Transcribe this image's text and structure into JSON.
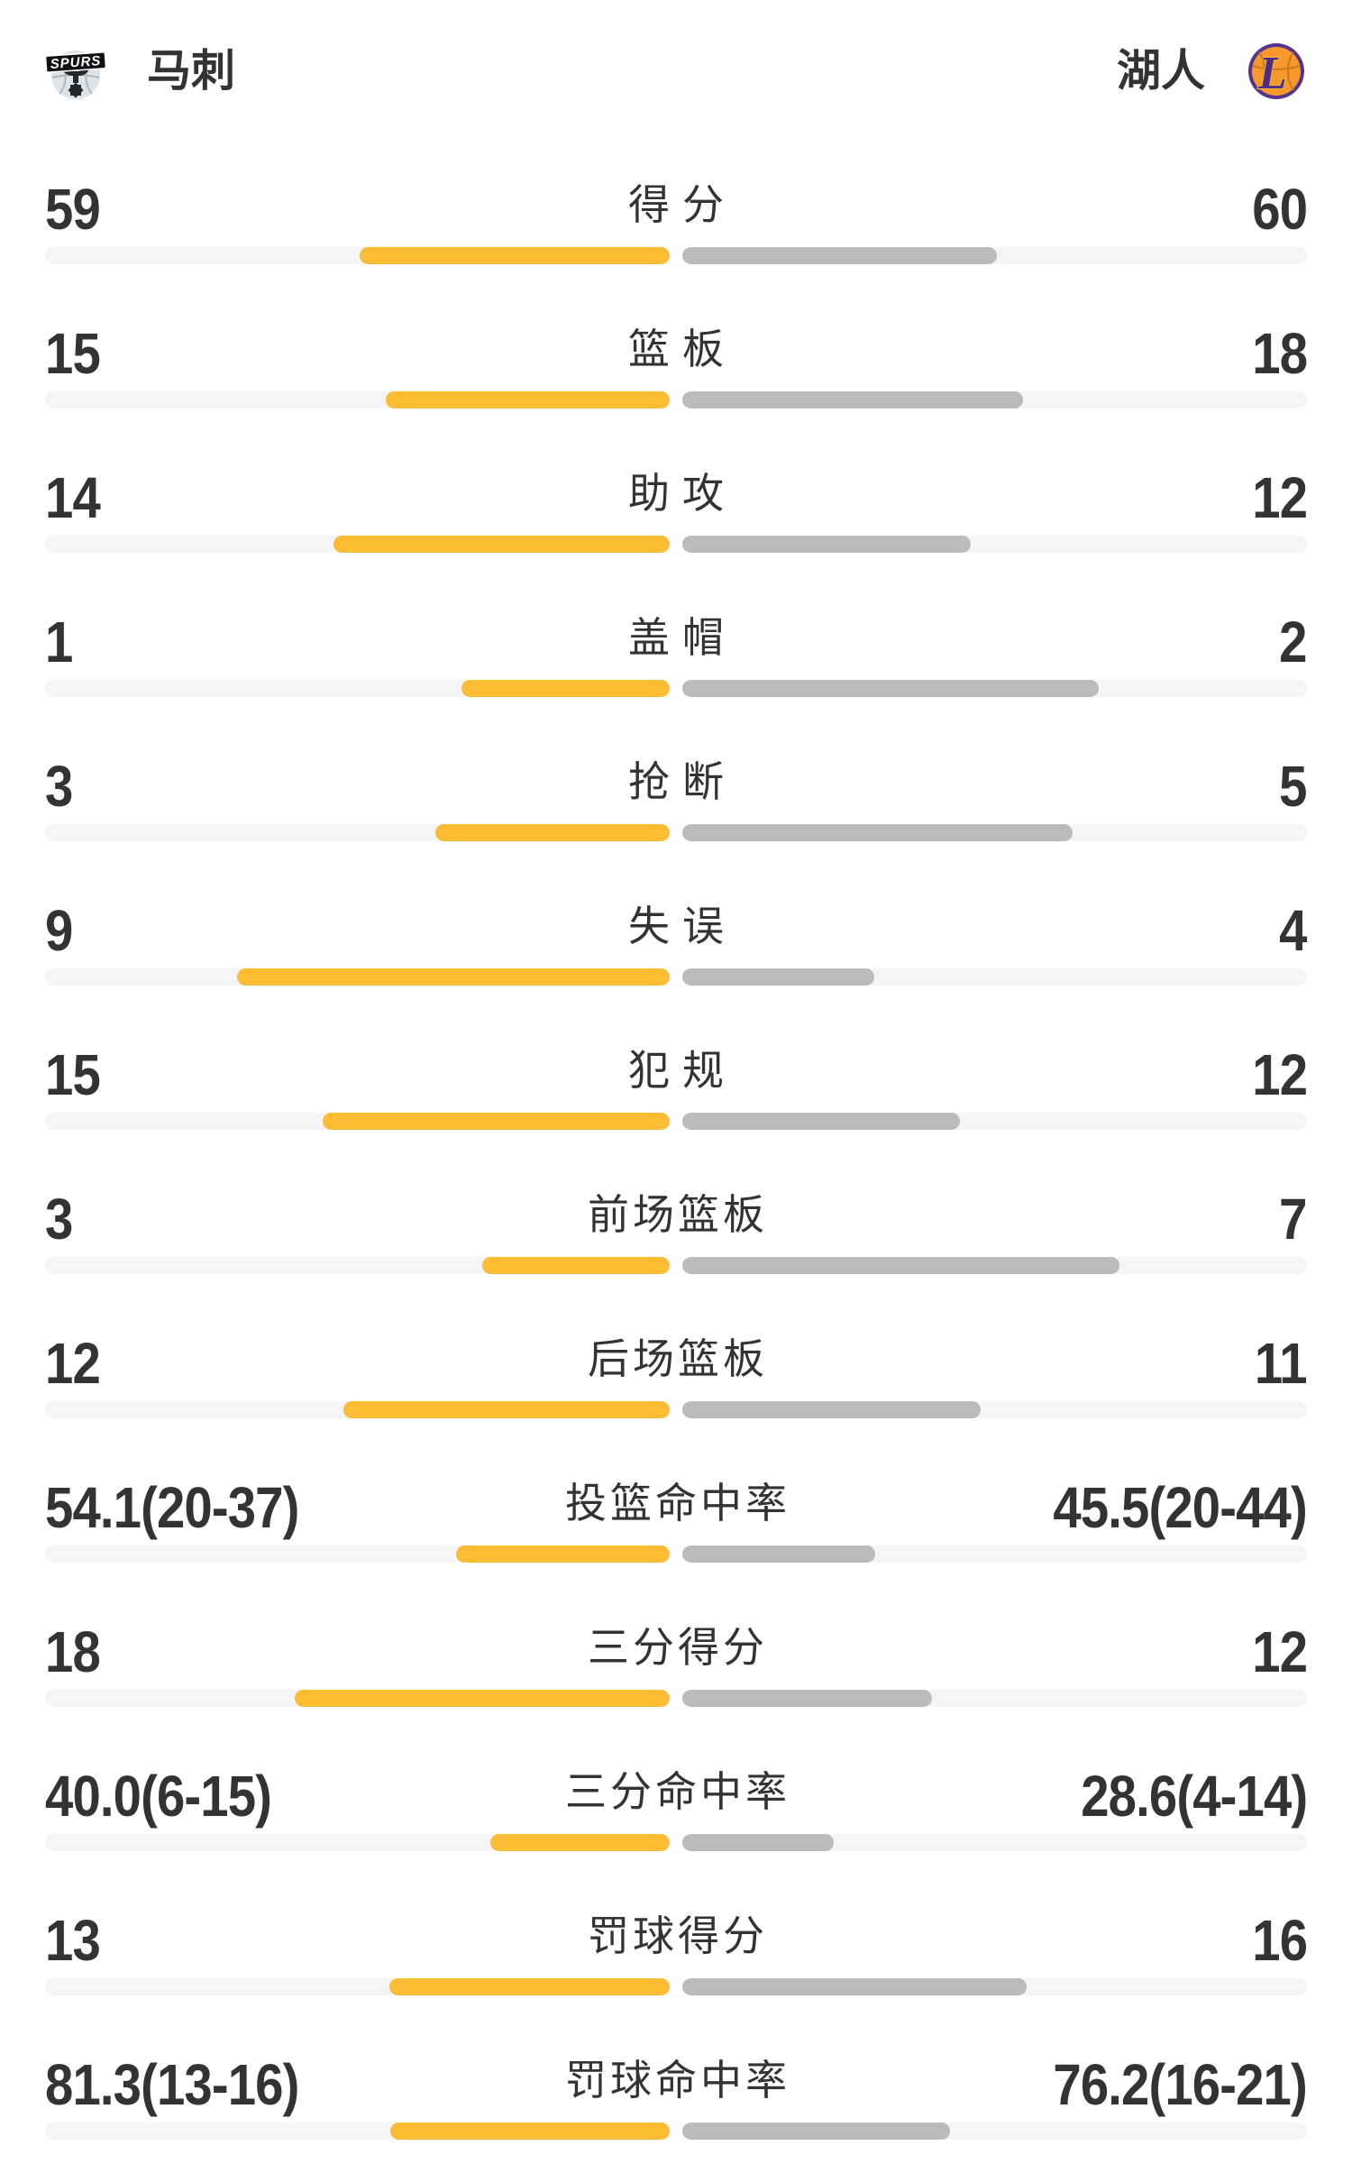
{
  "header": {
    "home": {
      "name": "马刺",
      "logo": "spurs-logo",
      "logo_text": "SPURS"
    },
    "away": {
      "name": "湖人",
      "logo": "lakers-logo",
      "logo_letter": "L"
    }
  },
  "colors": {
    "home_bar": "#FBBC34",
    "away_bar": "#BBBBBB",
    "track": "#F5F5F7",
    "text": "#333333",
    "background": "#FFFFFF",
    "spurs_silver": "#DCE3E9",
    "spurs_dark": "#25282B",
    "lakers_purple": "#563390",
    "lakers_orange": "#F6982C",
    "lakers_gold": "#F2B63B"
  },
  "chart_data": {
    "type": "bar",
    "subtype": "paired-horizontal-comparison",
    "title": "",
    "teams": [
      "马刺",
      "湖人"
    ],
    "legend_position": "header",
    "grid": false,
    "rows": [
      {
        "label": "得分",
        "kind": "count",
        "home": 59,
        "away": 60,
        "home_display": "59",
        "away_display": "60"
      },
      {
        "label": "篮板",
        "kind": "count",
        "home": 15,
        "away": 18,
        "home_display": "15",
        "away_display": "18"
      },
      {
        "label": "助攻",
        "kind": "count",
        "home": 14,
        "away": 12,
        "home_display": "14",
        "away_display": "12"
      },
      {
        "label": "盖帽",
        "kind": "count",
        "home": 1,
        "away": 2,
        "home_display": "1",
        "away_display": "2"
      },
      {
        "label": "抢断",
        "kind": "count",
        "home": 3,
        "away": 5,
        "home_display": "3",
        "away_display": "5"
      },
      {
        "label": "失误",
        "kind": "count",
        "home": 9,
        "away": 4,
        "home_display": "9",
        "away_display": "4"
      },
      {
        "label": "犯规",
        "kind": "count",
        "home": 15,
        "away": 12,
        "home_display": "15",
        "away_display": "12"
      },
      {
        "label": "前场篮板",
        "kind": "count",
        "home": 3,
        "away": 7,
        "home_display": "3",
        "away_display": "7"
      },
      {
        "label": "后场篮板",
        "kind": "count",
        "home": 12,
        "away": 11,
        "home_display": "12",
        "away_display": "11"
      },
      {
        "label": "投篮命中率",
        "kind": "percent",
        "home": 54.1,
        "away": 45.5,
        "home_display": "54.1(20-37)",
        "away_display": "45.5(20-44)"
      },
      {
        "label": "三分得分",
        "kind": "count",
        "home": 18,
        "away": 12,
        "home_display": "18",
        "away_display": "12"
      },
      {
        "label": "三分命中率",
        "kind": "percent",
        "home": 40.0,
        "away": 28.6,
        "home_display": "40.0(6-15)",
        "away_display": "28.6(4-14)"
      },
      {
        "label": "罚球得分",
        "kind": "count",
        "home": 13,
        "away": 16,
        "home_display": "13",
        "away_display": "16"
      },
      {
        "label": "罚球命中率",
        "kind": "percent",
        "home": 81.3,
        "away": 76.2,
        "home_display": "81.3(13-16)",
        "away_display": "76.2(16-21)"
      }
    ]
  }
}
